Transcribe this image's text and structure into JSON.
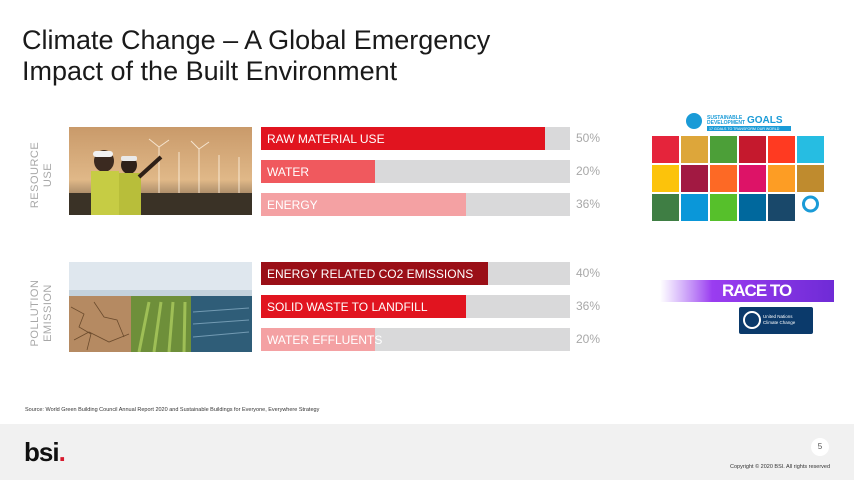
{
  "slide": {
    "title_line1": "Climate Change – A Global Emergency",
    "title_line2": "Impact of the Built Environment",
    "section_resource": "RESOURCE USE",
    "section_pollution": "POLLUTION EMISSION",
    "source": "Source: World Green Building Council Annual Report 2020 and Sustainable Buildings for Everyone, Everywhere Strategy",
    "logo_text": "bsi",
    "logo_dot": ".",
    "page_number": "5",
    "copyright": "Copyright © 2020 BSI. All rights reserved",
    "sdg_title": "SUSTAINABLE DEVELOPMENT GOALS",
    "sdg_subtitle": "17 GOALS TO TRANSFORM OUR WORLD",
    "race_to_zero": "RACE TO ZERO",
    "unfccc_label": "United Nations Climate Change"
  },
  "colors": {
    "dark_red": "#9a0f17",
    "red": "#e1141f",
    "pink": "#f2a0a2",
    "track": "#d9d9da"
  },
  "chart_data": {
    "type": "bar",
    "orientation": "horizontal",
    "xlim": [
      0,
      100
    ],
    "unit": "%",
    "groups": [
      {
        "name": "RESOURCE USE",
        "bars": [
          {
            "label": "RAW MATERIAL USE",
            "value": 50,
            "value_label": "50%",
            "color": "#e1141f"
          },
          {
            "label": "WATER",
            "value": 20,
            "value_label": "20%",
            "color": "#f0595e"
          },
          {
            "label": "ENERGY",
            "value": 36,
            "value_label": "36%",
            "color": "#f4a1a3"
          }
        ]
      },
      {
        "name": "POLLUTION EMISSION",
        "bars": [
          {
            "label": "ENERGY RELATED CO2 EMISSIONS",
            "value": 40,
            "value_label": "40%",
            "color": "#9a0f17"
          },
          {
            "label": "SOLID WASTE TO LANDFILL",
            "value": 36,
            "value_label": "36%",
            "color": "#e1141f"
          },
          {
            "label": "WATER EFFLUENTS",
            "value": 20,
            "value_label": "20%",
            "color": "#f4a1a3"
          }
        ]
      }
    ]
  }
}
